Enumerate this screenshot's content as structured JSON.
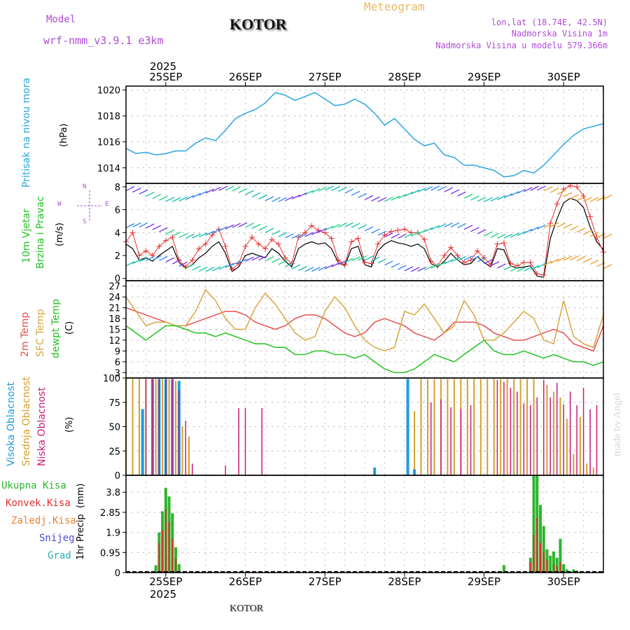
{
  "header": {
    "model_label": "Model",
    "model_name": "wrf-nmm_v3.9.1 e3km",
    "location": "KOTOR",
    "meteogram": "Meteogram",
    "lonlat": "lon,lat (18.74E, 42.5N)",
    "altitude": "Nadmorska Visina 1m",
    "model_altitude": "Nadmorska Visina u modelu 579.366m",
    "footer_location": "KOTOR",
    "watermark": "made by Angel"
  },
  "colors": {
    "pressure": "#2aa6e0",
    "wind_speed": "#000000",
    "gust": "#e83030",
    "temp2m": "#e85050",
    "sfc_temp": "#d9a640",
    "dewpoint": "#22c322",
    "cloud_high": "#1e9be0",
    "cloud_mid": "#d4a02e",
    "cloud_low": "#c81c78",
    "precip_total": "#2db52d",
    "precip_conv": "#e03030",
    "frozen": "#f08030",
    "snow": "#4a4ae0",
    "hail": "#2ab0b0",
    "axis_title_violet": "#b04cd8"
  },
  "chart_data": {
    "type": "meteogram",
    "year": "2025",
    "x_range_hours": [
      0,
      144
    ],
    "day_ticks": [
      {
        "label": "25SEP",
        "hour": 12
      },
      {
        "label": "26SEP",
        "hour": 36
      },
      {
        "label": "27SEP",
        "hour": 60
      },
      {
        "label": "28SEP",
        "hour": 84
      },
      {
        "label": "29SEP",
        "hour": 108
      },
      {
        "label": "30SEP",
        "hour": 132
      }
    ],
    "pressure": {
      "title": "Pritisak na nivou mora",
      "unit": "(hPa)",
      "ylim": [
        1012.8,
        1020.3
      ],
      "yticks": [
        1014,
        1016,
        1018,
        1020
      ],
      "x": [
        0,
        3,
        6,
        9,
        12,
        15,
        18,
        21,
        24,
        27,
        30,
        33,
        36,
        39,
        42,
        45,
        48,
        51,
        54,
        57,
        60,
        63,
        66,
        69,
        72,
        75,
        78,
        81,
        84,
        87,
        90,
        93,
        96,
        99,
        102,
        105,
        108,
        111,
        114,
        117,
        120,
        123,
        126,
        129,
        132,
        135,
        138,
        141,
        144
      ],
      "values": [
        1015.5,
        1015.1,
        1015.2,
        1015.0,
        1015.1,
        1015.3,
        1015.3,
        1015.9,
        1016.3,
        1016.1,
        1016.9,
        1017.8,
        1018.2,
        1018.5,
        1019.0,
        1019.8,
        1019.6,
        1019.2,
        1019.5,
        1019.8,
        1019.3,
        1018.8,
        1018.9,
        1019.3,
        1018.9,
        1018.2,
        1017.3,
        1017.8,
        1017.0,
        1016.2,
        1015.7,
        1015.9,
        1015.0,
        1014.8,
        1014.2,
        1014.2,
        1014.0,
        1013.8,
        1013.3,
        1013.4,
        1013.8,
        1013.6,
        1014.2,
        1015.0,
        1015.8,
        1016.5,
        1017.0,
        1017.2,
        1017.4
      ]
    },
    "wind": {
      "title": "10m Vjetar",
      "subtitle": "Brzina i Pravac",
      "unit": "(m/s)",
      "compass": {
        "n": "N",
        "s": "S",
        "w": "W",
        "e": "E"
      },
      "ylim": [
        -0.2,
        8.3
      ],
      "yticks": [
        0,
        2,
        4,
        6,
        8
      ],
      "x": [
        0,
        2,
        4,
        6,
        8,
        10,
        12,
        14,
        16,
        18,
        20,
        22,
        24,
        26,
        28,
        30,
        32,
        34,
        36,
        38,
        40,
        42,
        44,
        46,
        48,
        50,
        52,
        54,
        56,
        58,
        60,
        62,
        64,
        66,
        68,
        70,
        72,
        74,
        76,
        78,
        80,
        82,
        84,
        86,
        88,
        90,
        92,
        94,
        96,
        98,
        100,
        102,
        104,
        106,
        108,
        110,
        112,
        114,
        116,
        118,
        120,
        122,
        124,
        126,
        128,
        130,
        132,
        134,
        136,
        138,
        140,
        142,
        144
      ],
      "speed": [
        3.0,
        2.6,
        1.6,
        1.8,
        1.5,
        2.0,
        2.4,
        2.8,
        1.4,
        0.9,
        1.2,
        1.8,
        2.2,
        2.8,
        3.2,
        2.2,
        0.6,
        1.0,
        2.0,
        2.2,
        2.0,
        1.8,
        2.6,
        2.2,
        1.5,
        1.0,
        2.6,
        3.0,
        3.2,
        3.0,
        3.1,
        2.6,
        1.4,
        1.1,
        2.6,
        2.8,
        1.2,
        1.0,
        2.4,
        3.0,
        3.3,
        3.1,
        3.0,
        2.8,
        3.0,
        2.6,
        1.3,
        1.0,
        1.5,
        2.2,
        1.6,
        1.2,
        1.3,
        1.9,
        1.4,
        1.0,
        2.6,
        2.5,
        1.1,
        0.9,
        1.0,
        1.1,
        0.2,
        0.1,
        3.5,
        5.2,
        6.6,
        7.0,
        6.8,
        6.2,
        4.5,
        3.2,
        2.5
      ],
      "gust": [
        3.2,
        4.0,
        2.0,
        2.4,
        2.0,
        2.8,
        3.3,
        3.6,
        1.6,
        1.0,
        1.6,
        2.6,
        3.0,
        3.8,
        4.3,
        2.8,
        0.8,
        1.3,
        2.8,
        3.6,
        3.0,
        2.6,
        3.4,
        3.0,
        1.8,
        1.3,
        3.6,
        4.0,
        4.6,
        4.2,
        4.0,
        3.5,
        1.6,
        1.2,
        3.2,
        3.5,
        1.4,
        1.3,
        3.0,
        3.8,
        4.1,
        4.2,
        4.3,
        4.0,
        4.0,
        3.4,
        1.5,
        1.1,
        2.0,
        2.7,
        2.0,
        1.4,
        1.6,
        2.4,
        1.8,
        1.2,
        3.0,
        3.1,
        1.3,
        1.1,
        1.4,
        1.4,
        0.4,
        0.3,
        4.8,
        6.5,
        7.8,
        8.1,
        8.0,
        7.2,
        5.4,
        3.6,
        2.3
      ]
    },
    "temperature": {
      "titles": {
        "t2m": "2m Temp",
        "sfc": "SFC Temp",
        "dew": "dewpt Temp"
      },
      "unit": "(C)",
      "ylim": [
        1.5,
        28.5
      ],
      "yticks": [
        3,
        6,
        9,
        12,
        15,
        18,
        21,
        24,
        27
      ],
      "x": [
        0,
        3,
        6,
        9,
        12,
        15,
        18,
        21,
        24,
        27,
        30,
        33,
        36,
        39,
        42,
        45,
        48,
        51,
        54,
        57,
        60,
        63,
        66,
        69,
        72,
        75,
        78,
        81,
        84,
        87,
        90,
        93,
        96,
        99,
        102,
        105,
        108,
        111,
        114,
        117,
        120,
        123,
        126,
        129,
        132,
        135,
        138,
        141,
        144
      ],
      "t2m": [
        21,
        20,
        19,
        18,
        17,
        16,
        16,
        17,
        18,
        19,
        20,
        20,
        19,
        17,
        16,
        15,
        16,
        18,
        19,
        19,
        18,
        16,
        14,
        13,
        14,
        17,
        18,
        17,
        16,
        14,
        13,
        12,
        14,
        17,
        17,
        17,
        16,
        14,
        13,
        12,
        12,
        13,
        14,
        15,
        14,
        11,
        10,
        9,
        16
      ],
      "sfc": [
        24,
        20,
        16,
        17,
        17,
        16,
        16,
        20,
        26,
        23,
        18,
        15,
        15,
        21,
        25,
        22,
        18,
        14,
        12,
        13,
        20,
        24,
        21,
        16,
        12,
        10,
        9,
        10,
        20,
        19,
        22,
        18,
        14,
        16,
        23,
        19,
        12,
        12,
        14,
        17,
        20,
        18,
        12,
        11,
        23,
        13,
        11,
        10,
        19
      ],
      "dew": [
        16,
        14,
        12,
        14,
        16,
        16,
        15,
        14,
        14,
        13,
        14,
        13,
        12,
        11,
        11,
        10,
        10,
        8,
        8,
        9,
        9,
        8,
        8,
        7,
        8,
        6,
        4,
        3,
        3,
        4,
        6,
        8,
        7,
        6,
        8,
        10,
        12,
        9,
        8,
        8,
        9,
        8,
        7,
        8,
        7,
        6,
        6,
        5,
        6
      ]
    },
    "clouds": {
      "titles": {
        "high": "Visoka Oblacnost",
        "mid": "Srednja Oblacnost",
        "low": "Niska Oblacnost"
      },
      "unit": "(%)",
      "ylim": [
        0,
        100
      ],
      "yticks": [
        0,
        25,
        50,
        75,
        100
      ],
      "high": [
        [
          5,
          68
        ],
        [
          8,
          99
        ],
        [
          10,
          99
        ],
        [
          12,
          99
        ],
        [
          14,
          99
        ],
        [
          16,
          97
        ],
        [
          85,
          99
        ],
        [
          75,
          8
        ],
        [
          87,
          6
        ]
      ],
      "mid": [
        [
          0,
          99
        ],
        [
          2,
          99
        ],
        [
          4,
          99
        ],
        [
          6,
          99
        ],
        [
          9,
          99
        ],
        [
          11,
          99
        ],
        [
          13,
          99
        ],
        [
          15,
          97
        ],
        [
          17,
          50
        ],
        [
          19,
          40
        ],
        [
          85,
          28
        ],
        [
          87,
          66
        ],
        [
          89,
          99
        ],
        [
          91,
          99
        ],
        [
          93,
          99
        ],
        [
          95,
          99
        ],
        [
          97,
          99
        ],
        [
          99,
          99
        ],
        [
          101,
          99
        ],
        [
          103,
          99
        ],
        [
          105,
          99
        ],
        [
          107,
          99
        ],
        [
          109,
          99
        ],
        [
          111,
          99
        ],
        [
          113,
          99
        ],
        [
          115,
          99
        ],
        [
          117,
          99
        ],
        [
          119,
          99
        ],
        [
          121,
          99
        ],
        [
          123,
          99
        ],
        [
          127,
          93
        ],
        [
          129,
          86
        ],
        [
          131,
          80
        ],
        [
          133,
          58
        ],
        [
          135,
          22
        ],
        [
          137,
          60
        ],
        [
          139,
          12
        ],
        [
          141,
          8
        ]
      ],
      "low": [
        [
          6,
          99
        ],
        [
          8,
          99
        ],
        [
          10,
          99
        ],
        [
          12,
          99
        ],
        [
          14,
          99
        ],
        [
          16,
          87
        ],
        [
          18,
          56
        ],
        [
          20,
          12
        ],
        [
          30,
          10
        ],
        [
          34,
          69
        ],
        [
          36,
          69
        ],
        [
          41,
          69
        ],
        [
          92,
          75
        ],
        [
          95,
          78
        ],
        [
          98,
          70
        ],
        [
          101,
          68
        ],
        [
          104,
          72
        ],
        [
          112,
          98
        ],
        [
          114,
          96
        ],
        [
          116,
          90
        ],
        [
          118,
          86
        ],
        [
          120,
          74
        ],
        [
          122,
          72
        ],
        [
          124,
          80
        ],
        [
          126,
          98
        ],
        [
          128,
          80
        ],
        [
          130,
          95
        ],
        [
          132,
          73
        ],
        [
          134,
          86
        ],
        [
          136,
          72
        ],
        [
          138,
          90
        ],
        [
          140,
          68
        ],
        [
          142,
          72
        ]
      ]
    },
    "precip": {
      "title": "1hr Precip",
      "unit": "(mm)",
      "legend": {
        "total": "Ukupna Kisa",
        "conv": "Konvek.Kisa",
        "frozen": "Zaledj.Kisa",
        "snow": "Snijeg",
        "hail": "Grad"
      },
      "ylim": [
        0,
        4.6
      ],
      "yticks": [
        0,
        0.95,
        1.9,
        2.85,
        3.8
      ],
      "ytick_labels": [
        "0",
        "0.95",
        "1.9",
        "2.85",
        "3.8"
      ],
      "total": [
        [
          9,
          0.35
        ],
        [
          10,
          1.9
        ],
        [
          11,
          2.9
        ],
        [
          12,
          4.0
        ],
        [
          13,
          3.6
        ],
        [
          14,
          2.8
        ],
        [
          15,
          1.2
        ],
        [
          16,
          0.4
        ],
        [
          35,
          0.1
        ],
        [
          114,
          0.35
        ],
        [
          122,
          0.7
        ],
        [
          123,
          4.6
        ],
        [
          124,
          4.6
        ],
        [
          125,
          3.2
        ],
        [
          126,
          2.2
        ],
        [
          127,
          1.1
        ],
        [
          128,
          0.8
        ],
        [
          129,
          1.0
        ],
        [
          130,
          0.7
        ],
        [
          131,
          1.6
        ],
        [
          132,
          0.4
        ],
        [
          133,
          0.15
        ],
        [
          135,
          0.15
        ],
        [
          136,
          0.1
        ]
      ],
      "conv": [
        [
          10,
          1.4
        ],
        [
          11,
          2.0
        ],
        [
          12,
          3.0
        ],
        [
          13,
          2.4
        ],
        [
          14,
          1.6
        ],
        [
          15,
          0.7
        ],
        [
          122,
          0.5
        ],
        [
          123,
          1.8
        ],
        [
          124,
          2.6
        ],
        [
          125,
          1.4
        ],
        [
          126,
          1.0
        ],
        [
          127,
          0.6
        ],
        [
          129,
          0.4
        ],
        [
          130,
          0.3
        ],
        [
          131,
          0.5
        ]
      ]
    }
  }
}
